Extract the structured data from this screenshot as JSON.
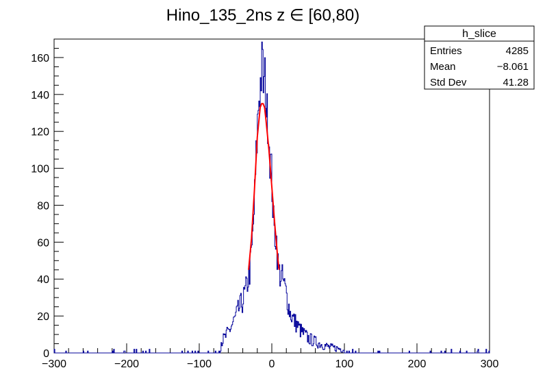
{
  "chart_data": {
    "type": "histogram",
    "title": "Hino_135_2ns z  ∈ [60,80)",
    "xlabel": "",
    "ylabel": "",
    "xlim": [
      -300,
      300
    ],
    "ylim": [
      0,
      170
    ],
    "x_ticks": [
      -300,
      -200,
      -100,
      0,
      100,
      200,
      300
    ],
    "y_ticks": [
      0,
      20,
      40,
      60,
      80,
      100,
      120,
      140,
      160
    ],
    "grid": false,
    "legend": "none",
    "colors": {
      "histogram": "#000099",
      "fit": "#ff0000",
      "axes": "#000000"
    },
    "series": [
      {
        "kind": "histogram-peak",
        "x": [
          -70,
          -65,
          -60,
          -55,
          -50,
          -45,
          -40,
          -35,
          -30,
          -27,
          -24,
          -21,
          -18,
          -15,
          -13,
          -11,
          -9,
          -7,
          -5,
          -3,
          0,
          3,
          6,
          9,
          12,
          15,
          20,
          25,
          30,
          40,
          50,
          60,
          80,
          100
        ],
        "y": [
          6,
          8,
          11,
          15,
          19,
          24,
          28,
          35,
          45,
          58,
          80,
          110,
          138,
          148,
          158,
          142,
          150,
          128,
          128,
          110,
          95,
          65,
          64,
          45,
          42,
          40,
          32,
          22,
          18,
          12,
          8,
          6,
          3,
          2
        ]
      },
      {
        "kind": "fit",
        "x": [
          -32,
          -28,
          -24,
          -20,
          -16,
          -14,
          -12,
          -10,
          -8,
          -4,
          0,
          4,
          8,
          10
        ],
        "y": [
          45,
          62,
          88,
          117,
          133,
          135,
          135,
          133,
          126,
          110,
          90,
          70,
          52,
          45
        ]
      }
    ],
    "stats_box": {
      "title": "h_slice",
      "rows": [
        {
          "label": "Entries",
          "value": "4285"
        },
        {
          "label": "Mean",
          "value": "−8.061"
        },
        {
          "label": "Std Dev",
          "value": "41.28"
        }
      ]
    }
  }
}
